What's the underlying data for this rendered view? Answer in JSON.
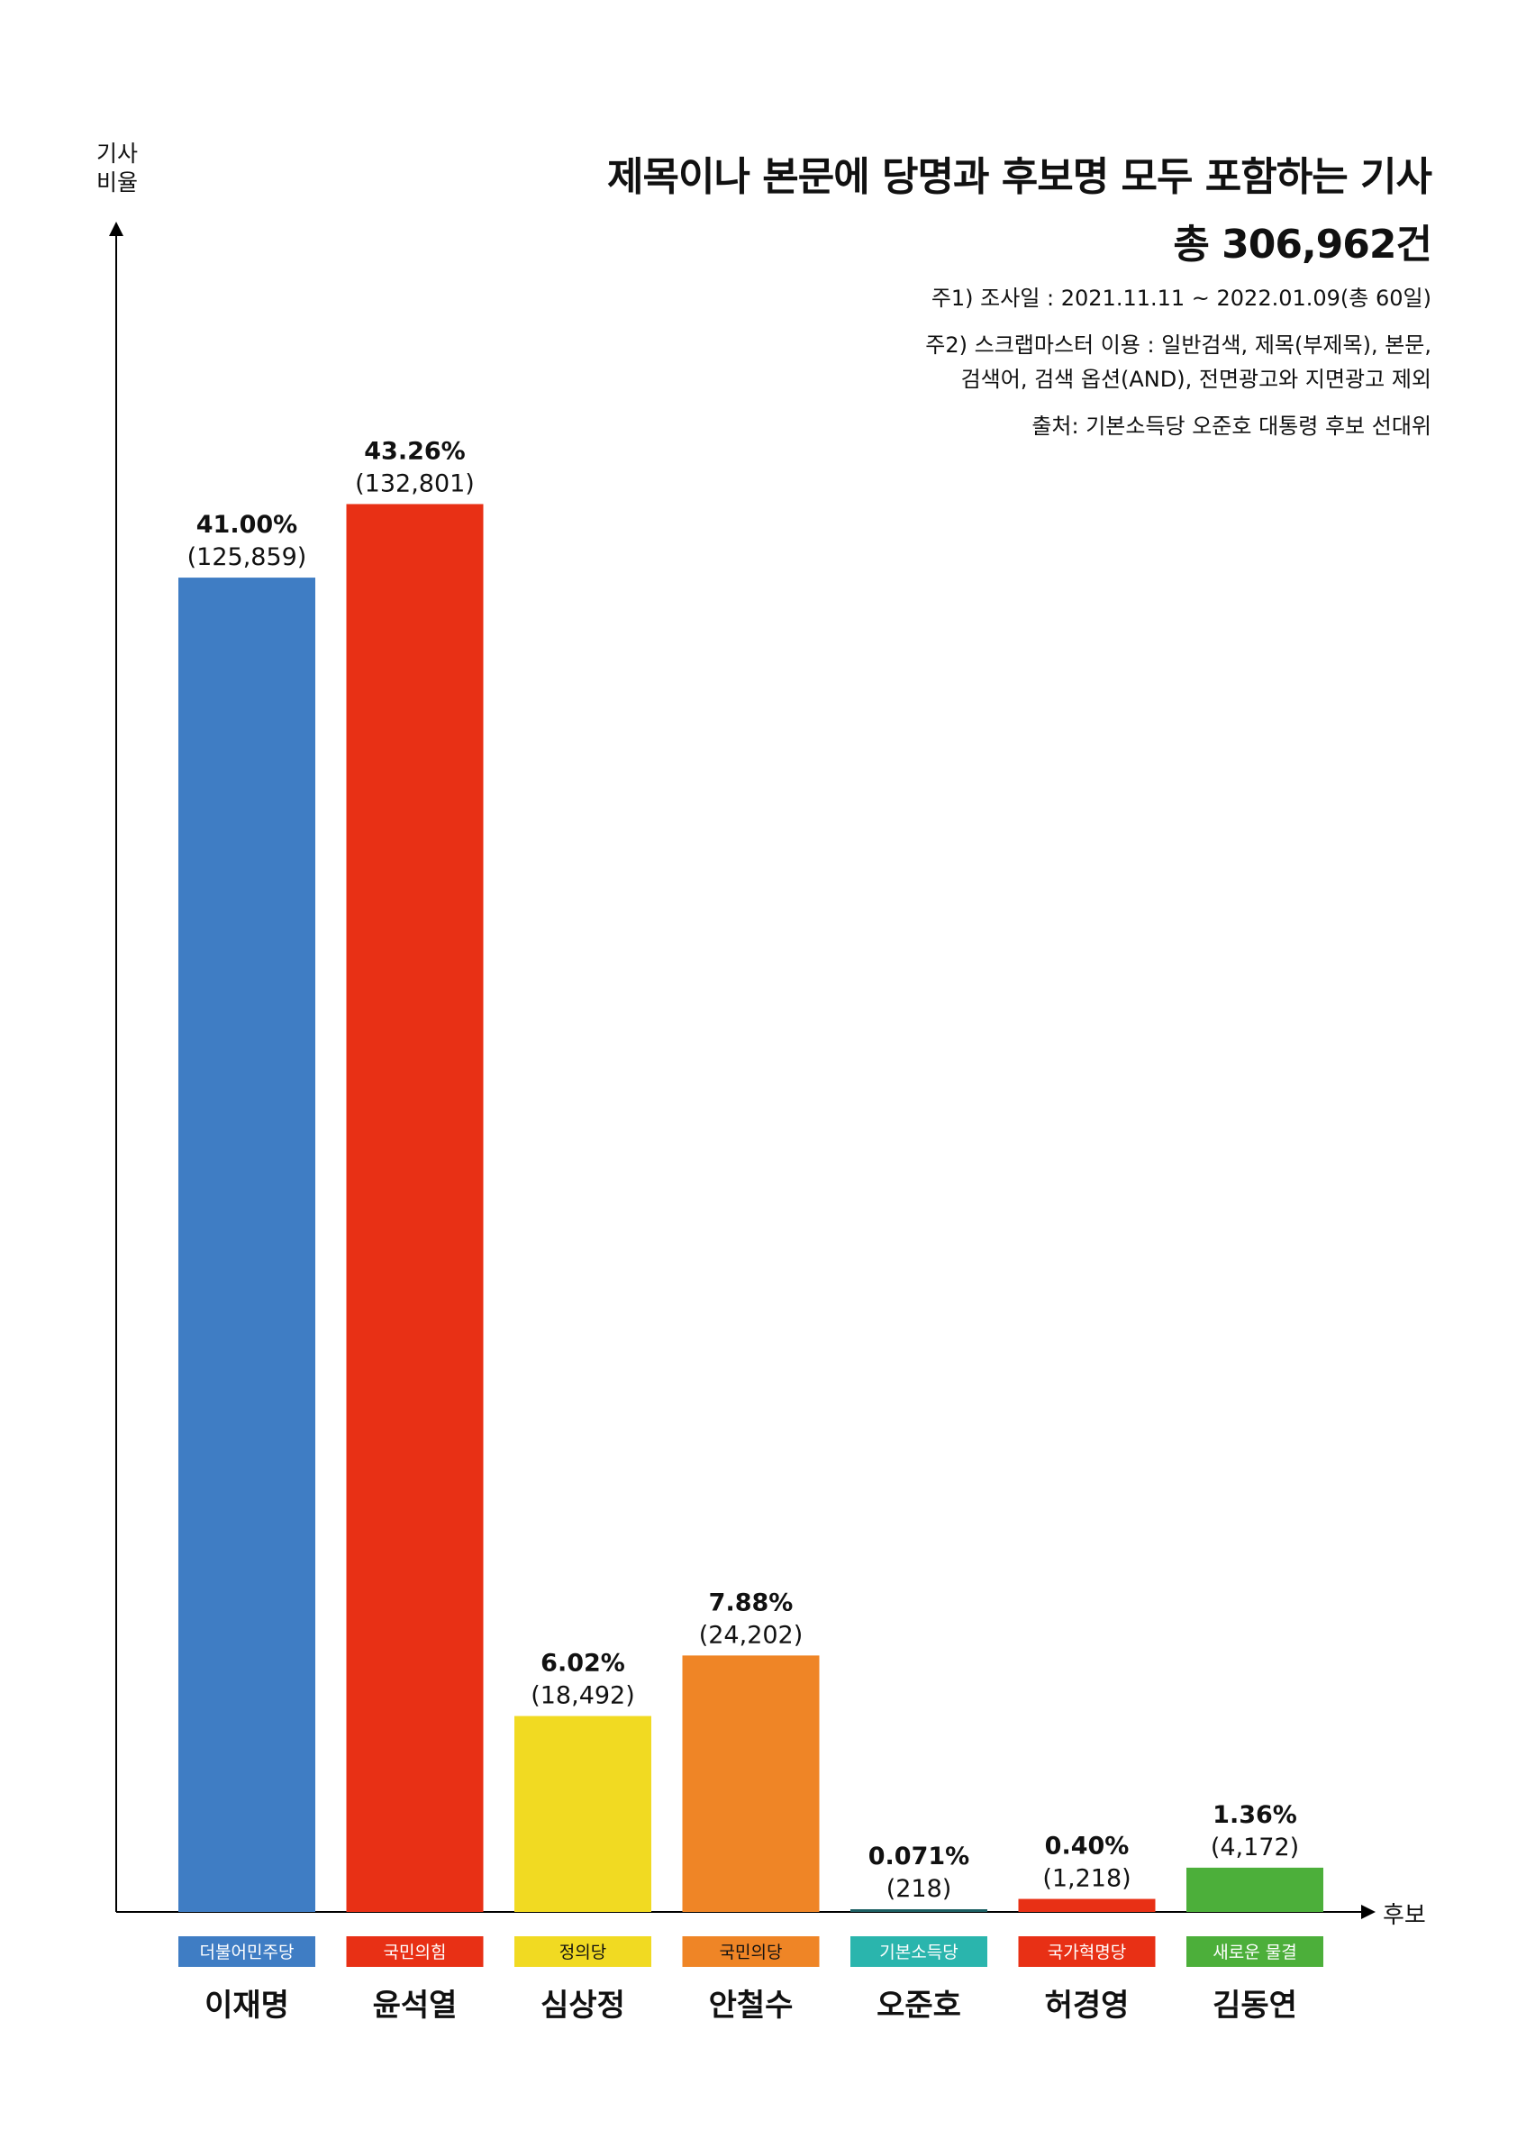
{
  "header": {
    "title_line1": "제목이나 본문에 당명과 후보명 모두 포함하는 기사",
    "title_line2": "총 306,962건",
    "note1": "주1) 조사일 : 2021.11.11 ~ 2022.01.09(총 60일)",
    "note2_line1": "주2) 스크랩마스터 이용 : 일반검색, 제목(부제목), 본문,",
    "note2_line2": "검색어, 검색 옵션(AND), 전면광고와 지면광고 제외",
    "source": "출처: 기본소득당 오준호 대통령 후보 선대위"
  },
  "chart_data": {
    "type": "bar",
    "ylabel_line1": "기사",
    "ylabel_line2": "비율",
    "xlabel": "후보",
    "ylim": [
      0,
      45
    ],
    "bars": [
      {
        "candidate": "이재명",
        "party": "더불어민주당",
        "percent": 41.0,
        "percent_label": "41.00%",
        "count_label": "(125,859)",
        "color": "#3f7dc4",
        "party_color": "#3f7dc4",
        "party_text_color": "#ffffff"
      },
      {
        "candidate": "윤석열",
        "party": "국민의힘",
        "percent": 43.26,
        "percent_label": "43.26%",
        "count_label": "(132,801)",
        "color": "#e83015",
        "party_color": "#e83015",
        "party_text_color": "#ffffff"
      },
      {
        "candidate": "심상정",
        "party": "정의당",
        "percent": 6.02,
        "percent_label": "6.02%",
        "count_label": "(18,492)",
        "color": "#f1da22",
        "party_color": "#f1da22",
        "party_text_color": "#111111"
      },
      {
        "candidate": "안철수",
        "party": "국민의당",
        "percent": 7.88,
        "percent_label": "7.88%",
        "count_label": "(24,202)",
        "color": "#ef8526",
        "party_color": "#ef8526",
        "party_text_color": "#111111"
      },
      {
        "candidate": "오준호",
        "party": "기본소득당",
        "percent": 0.071,
        "percent_label": "0.071%",
        "count_label": "(218)",
        "color": "#1c5f63",
        "party_color": "#2ab5ad",
        "party_text_color": "#ffffff"
      },
      {
        "candidate": "허경영",
        "party": "국가혁명당",
        "percent": 0.4,
        "percent_label": "0.40%",
        "count_label": "(1,218)",
        "color": "#e83015",
        "party_color": "#e83015",
        "party_text_color": "#ffffff"
      },
      {
        "candidate": "김동연",
        "party": "새로운 물결",
        "percent": 1.36,
        "percent_label": "1.36%",
        "count_label": "(4,172)",
        "color": "#4caf3a",
        "party_color": "#4caf3a",
        "party_text_color": "#ffffff"
      }
    ]
  }
}
